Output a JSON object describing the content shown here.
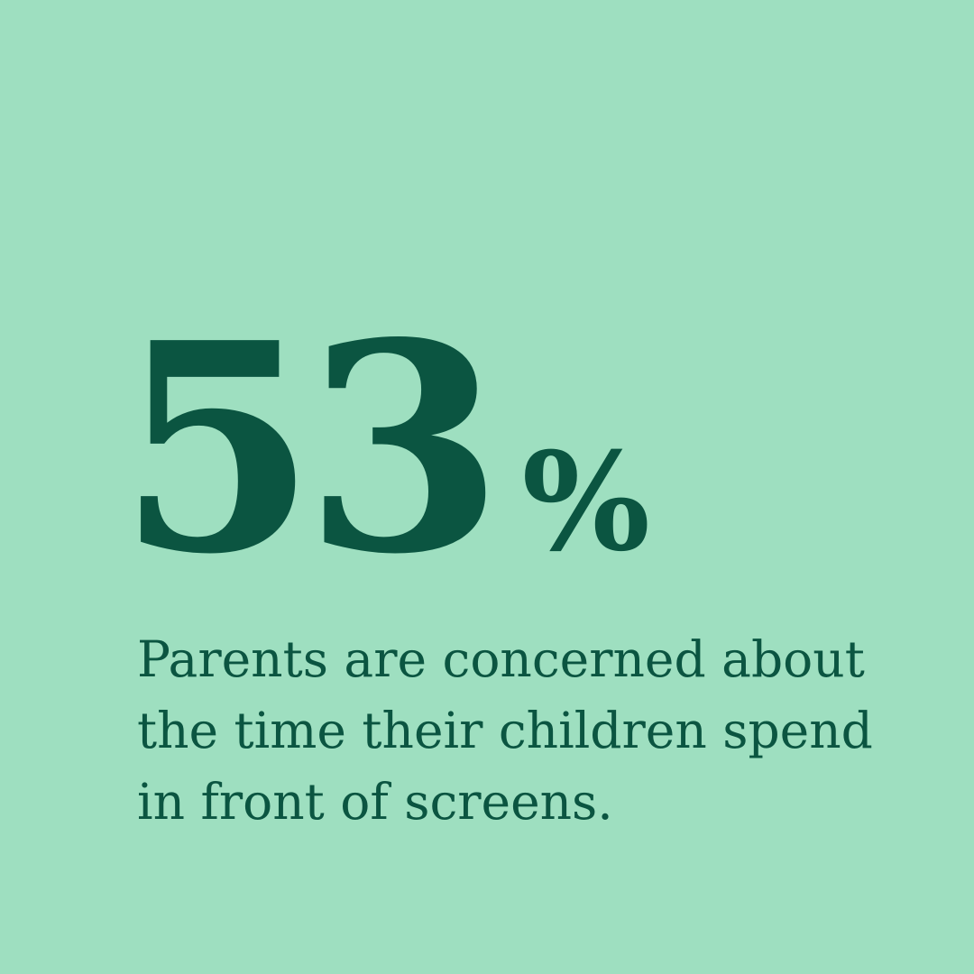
{
  "colors": {
    "bg": "#9EDFC0",
    "ink": "#0B5541"
  },
  "stat": {
    "value": "53",
    "unit": "%",
    "description": "Parents are concerned about the time their children spend in front of screens."
  }
}
